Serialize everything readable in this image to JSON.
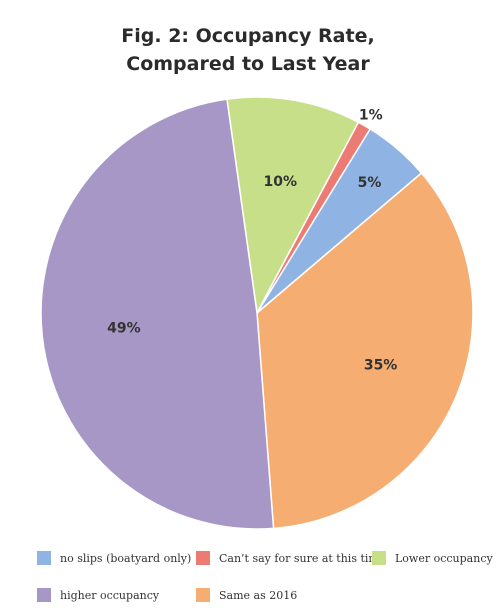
{
  "chart_data": {
    "type": "pie",
    "title_lines": [
      "Fig. 2: Occupancy Rate,",
      "Compared to Last Year"
    ],
    "slices": [
      {
        "label": "Lower occupancy",
        "value": 10,
        "display": "10%",
        "color": "#c8df8a"
      },
      {
        "label": "Can't say for sure at this time",
        "value": 1,
        "display": "1%",
        "color": "#ec7b73"
      },
      {
        "label": "no slips (boatyard only)",
        "value": 5,
        "display": "5%",
        "color": "#8fb4e3"
      },
      {
        "label": "Same as 2016",
        "value": 35,
        "display": "35%",
        "color": "#f5ad71"
      },
      {
        "label": "higher occupancy",
        "value": 49,
        "display": "49%",
        "color": "#a797c6"
      }
    ],
    "legend": [
      {
        "label": "no slips (boatyard only)",
        "color": "#8fb4e3"
      },
      {
        "label": "Can’t say for sure at this time",
        "color": "#ec7b73"
      },
      {
        "label": "Lower occupancy",
        "color": "#c8df8a"
      },
      {
        "label": "higher occupancy",
        "color": "#a797c6"
      },
      {
        "label": "Same as 2016",
        "color": "#f5ad71"
      }
    ],
    "legend_position": "bottom"
  }
}
